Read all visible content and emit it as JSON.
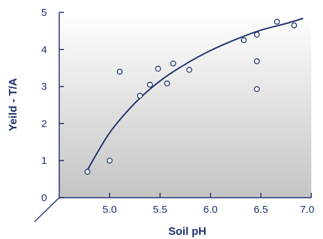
{
  "colors": {
    "ink": "#1c2f6e",
    "plot_bg_top": "#ffffff",
    "plot_bg_bottom": "#c4c4c4"
  },
  "chart_data": {
    "type": "scatter",
    "title": "",
    "xlabel": "Soil pH",
    "ylabel": "Yeild - T/A",
    "xlim": [
      4.5,
      7.0
    ],
    "ylim": [
      0,
      5
    ],
    "x_ticks": [
      "5.0",
      "5.5",
      "6.0",
      "6.5",
      "7.0"
    ],
    "y_ticks": [
      "0",
      "1",
      "2",
      "3",
      "4",
      "5"
    ],
    "grid": false,
    "series": [
      {
        "type": "scatter",
        "points": [
          [
            4.78,
            0.7
          ],
          [
            5.0,
            1.0
          ],
          [
            5.1,
            3.4
          ],
          [
            5.3,
            2.75
          ],
          [
            5.4,
            3.05
          ],
          [
            5.48,
            3.48
          ],
          [
            5.57,
            3.08
          ],
          [
            5.63,
            3.62
          ],
          [
            5.79,
            3.45
          ],
          [
            6.33,
            4.25
          ],
          [
            6.46,
            4.4
          ],
          [
            6.46,
            3.68
          ],
          [
            6.46,
            2.93
          ],
          [
            6.66,
            4.75
          ],
          [
            6.83,
            4.65
          ]
        ]
      },
      {
        "type": "line",
        "description_fit": "trend curve",
        "points": [
          [
            4.78,
            0.75
          ],
          [
            5.0,
            1.75
          ],
          [
            5.25,
            2.55
          ],
          [
            5.5,
            3.15
          ],
          [
            5.75,
            3.6
          ],
          [
            6.0,
            3.97
          ],
          [
            6.25,
            4.27
          ],
          [
            6.5,
            4.52
          ],
          [
            6.75,
            4.7
          ],
          [
            6.92,
            4.84
          ]
        ]
      }
    ]
  }
}
